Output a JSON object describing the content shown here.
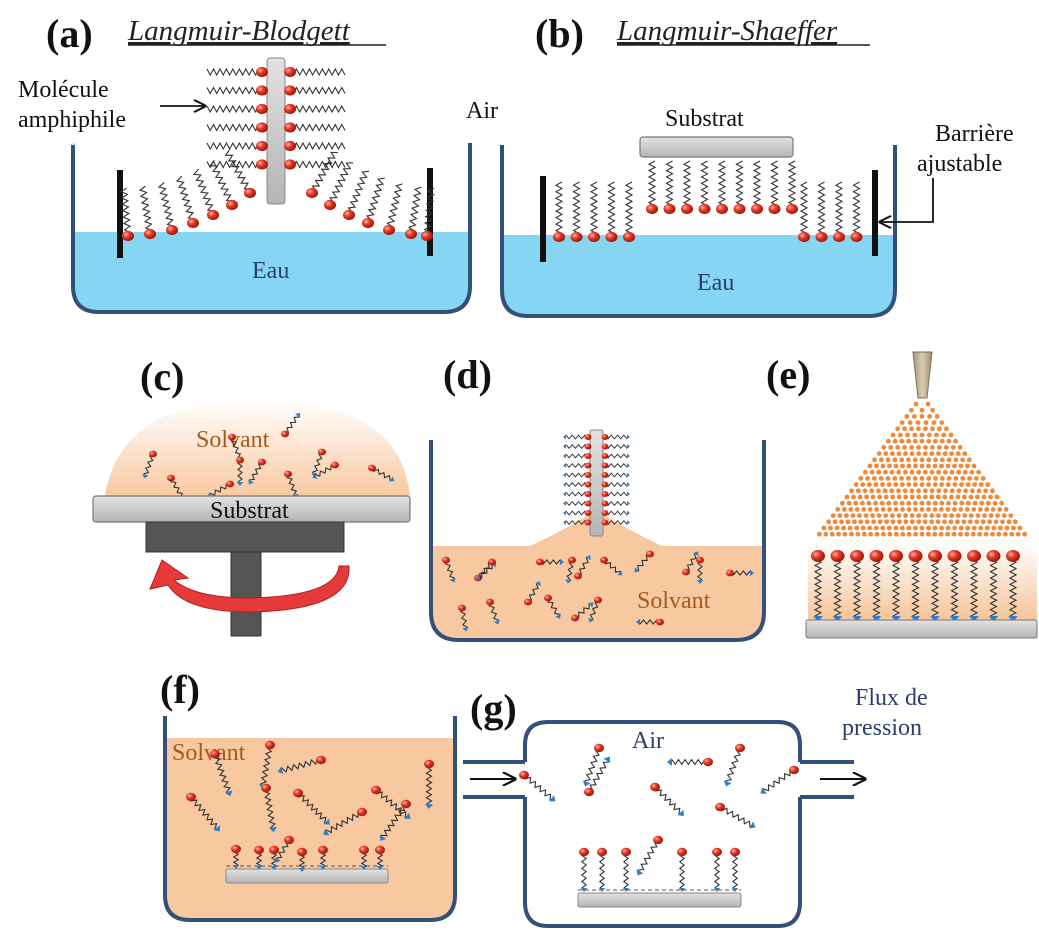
{
  "panels": {
    "a": {
      "letter": "(a)",
      "title": "Langmuir-Blodgett",
      "molecule_label_line1": "Molécule",
      "molecule_label_line2": "amphiphile",
      "air": "Air",
      "water": "Eau"
    },
    "b": {
      "letter": "(b)",
      "title": "Langmuir-Shaeffer",
      "substrate": "Substrat",
      "barrier_line1": "Barrière",
      "barrier_line2": "ajustable",
      "water": "Eau"
    },
    "c": {
      "letter": "(c)",
      "solvent": "Solvant",
      "substrate": "Substrat"
    },
    "d": {
      "letter": "(d)",
      "solvent": "Solvant"
    },
    "e": {
      "letter": "(e)"
    },
    "f": {
      "letter": "(f)",
      "solvent": "Solvant"
    },
    "g": {
      "letter": "(g)",
      "air": "Air",
      "flow_line1": "Flux de",
      "flow_line2": "pression"
    }
  },
  "colors": {
    "water": "#86d6f3",
    "solvent": "#f8c9a0",
    "container": "#33507a",
    "head": "#dd2a1a",
    "tail_end": "#2f7fc8",
    "substrate": "#c9c9c9",
    "dark_support": "#555555",
    "nozzle": "#c9b99a",
    "droplet": "#ef8a3a",
    "rotation_arrow": "#e43a3a",
    "navy_text": "#2b3e6b",
    "orange_text": "#a45a1c"
  }
}
